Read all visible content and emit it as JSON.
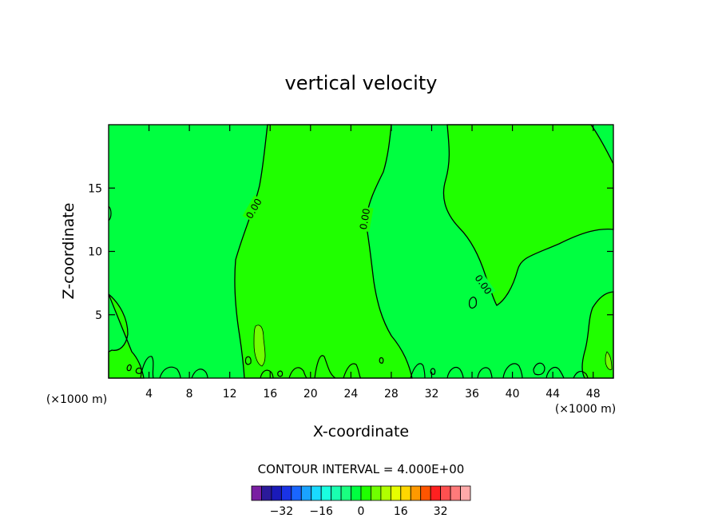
{
  "chart_data": {
    "type": "contour",
    "title": "vertical velocity",
    "xlabel": "X-coordinate",
    "ylabel": "Z-coordinate",
    "x_unit_left": "(×1000 m)",
    "x_unit_right": "(×1000 m)",
    "xlim": [
      0,
      50
    ],
    "ylim": [
      0,
      20
    ],
    "xticks": [
      4,
      8,
      12,
      16,
      20,
      24,
      28,
      32,
      36,
      40,
      44,
      48
    ],
    "yticks": [
      5,
      10,
      15
    ],
    "contour_label": "0.00",
    "contour_interval_text": "CONTOUR INTERVAL = 4.000E+00",
    "colorbar": {
      "ticks": [
        -32,
        -16,
        0,
        16,
        32
      ],
      "tick_labels": [
        "−32",
        "−16",
        "0",
        "16",
        "32"
      ],
      "colors": [
        "#7a1fa2",
        "#2b1a9a",
        "#1a1ab8",
        "#1a33e6",
        "#1a66ff",
        "#1aa3ff",
        "#1ad9ff",
        "#1affe0",
        "#1affb0",
        "#1aff80",
        "#00ff40",
        "#20ff00",
        "#70ff00",
        "#b0ff00",
        "#e6ff00",
        "#ffd700",
        "#ff9900",
        "#ff5500",
        "#ff2020",
        "#ff5050",
        "#ff7a7a",
        "#ffaaaa"
      ]
    },
    "fill_colors": {
      "positive": "#20ff00",
      "negative": "#00ff40",
      "light": "#70ff00"
    }
  }
}
